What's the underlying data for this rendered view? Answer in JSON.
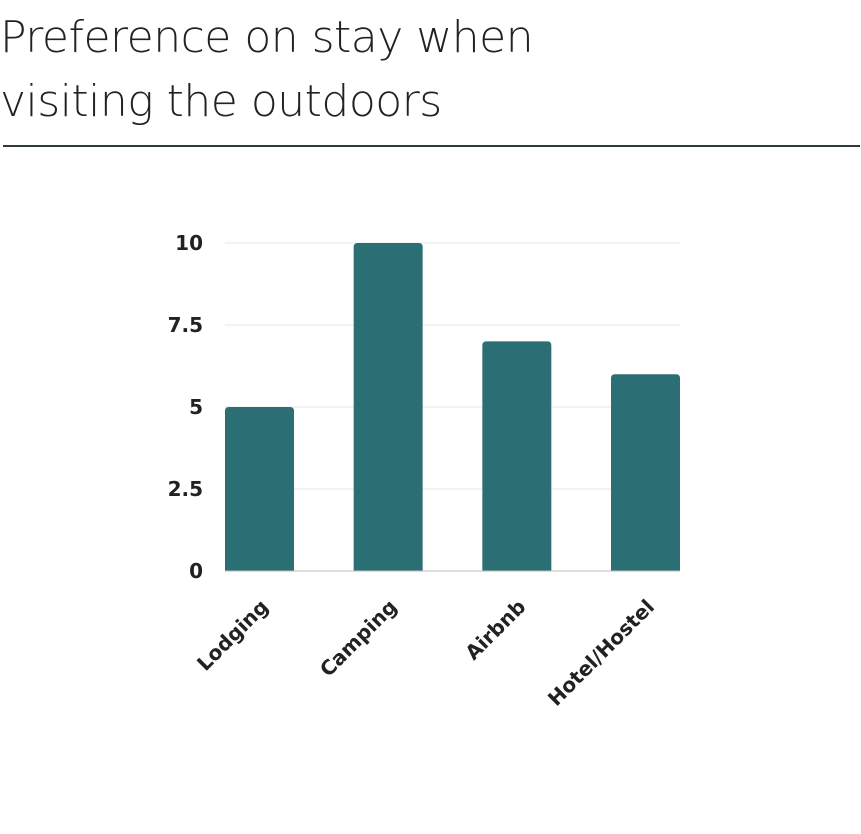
{
  "title_lines": [
    "Preference on stay when",
    "visiting the outdoors"
  ],
  "colors": {
    "bar": "#2b6f74",
    "grid": "#e6e6e6",
    "axis": "#bdbdbd",
    "rule": "#2d3b40",
    "text": "#222222"
  },
  "chart_data": {
    "type": "bar",
    "title": "Preference on stay when visiting the outdoors",
    "categories": [
      "Lodging",
      "Camping",
      "Airbnb",
      "Hotel/Hostel"
    ],
    "values": [
      5,
      10,
      7,
      6
    ],
    "ylim": [
      0,
      10
    ],
    "yticks": [
      0,
      2.5,
      5,
      7.5,
      10
    ],
    "ytick_labels": [
      "0",
      "2.5",
      "5",
      "7.5",
      "10"
    ],
    "xlabel": "",
    "ylabel": "",
    "grid": true,
    "legend": "none"
  }
}
